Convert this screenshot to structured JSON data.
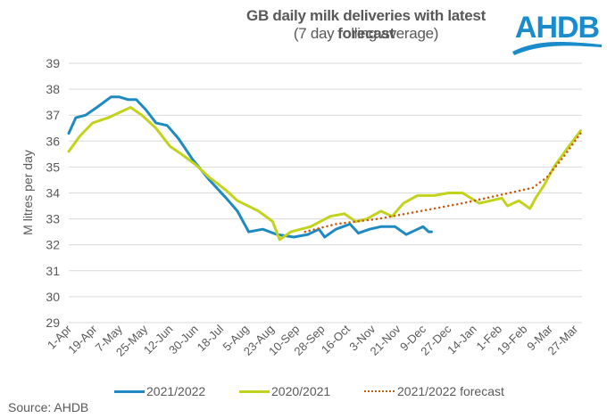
{
  "header": {
    "title": "GB daily milk deliveries with latest forecast",
    "subtitle": "(7 day rolling average)",
    "logo_text": "AHDB",
    "logo_color": "#1a8ccc"
  },
  "source": "Source: AHDB",
  "chart_data": {
    "type": "line",
    "title": "GB daily milk deliveries with latest forecast",
    "subtitle": "(7 day rolling average)",
    "xlabel": "",
    "ylabel": "M litres per day",
    "ylim": [
      29,
      39
    ],
    "yticks": [
      29,
      30,
      31,
      32,
      33,
      34,
      35,
      36,
      37,
      38,
      39
    ],
    "xlim_days": [
      0,
      365
    ],
    "x_unit": "days since 1-Apr",
    "xtick_days": [
      0,
      18,
      36,
      54,
      72,
      90,
      108,
      126,
      144,
      162,
      180,
      198,
      216,
      234,
      252,
      270,
      288,
      306,
      324,
      342,
      360
    ],
    "xtick_labels": [
      "1-Apr",
      "19-Apr",
      "7-May",
      "25-May",
      "12-Jun",
      "30-Jun",
      "18-Jul",
      "5-Aug",
      "23-Aug",
      "10-Sep",
      "28-Sep",
      "16-Oct",
      "3-Nov",
      "21-Nov",
      "9-Dec",
      "27-Dec",
      "14-Jan",
      "1-Feb",
      "19-Feb",
      "9-Mar",
      "27-Mar"
    ],
    "grid": "horizontal",
    "legend_position": "bottom",
    "series": [
      {
        "name": "2021/2022",
        "color": "#1f8ac2",
        "style": "solid",
        "points": [
          [
            0,
            36.3
          ],
          [
            5,
            36.9
          ],
          [
            12,
            37.0
          ],
          [
            20,
            37.3
          ],
          [
            30,
            37.7
          ],
          [
            36,
            37.7
          ],
          [
            42,
            37.6
          ],
          [
            48,
            37.6
          ],
          [
            55,
            37.2
          ],
          [
            62,
            36.7
          ],
          [
            70,
            36.6
          ],
          [
            78,
            36.1
          ],
          [
            88,
            35.3
          ],
          [
            100,
            34.5
          ],
          [
            112,
            33.8
          ],
          [
            120,
            33.3
          ],
          [
            128,
            32.5
          ],
          [
            138,
            32.6
          ],
          [
            148,
            32.4
          ],
          [
            160,
            32.3
          ],
          [
            170,
            32.4
          ],
          [
            178,
            32.6
          ],
          [
            182,
            32.3
          ],
          [
            190,
            32.6
          ],
          [
            200,
            32.8
          ],
          [
            206,
            32.45
          ],
          [
            214,
            32.6
          ],
          [
            222,
            32.7
          ],
          [
            232,
            32.7
          ],
          [
            240,
            32.4
          ],
          [
            248,
            32.6
          ],
          [
            252,
            32.7
          ],
          [
            256,
            32.5
          ],
          [
            258,
            32.5
          ]
        ]
      },
      {
        "name": "2020/2021",
        "color": "#c3d21c",
        "style": "solid",
        "points": [
          [
            0,
            35.6
          ],
          [
            8,
            36.2
          ],
          [
            17,
            36.7
          ],
          [
            28,
            36.9
          ],
          [
            40,
            37.2
          ],
          [
            44,
            37.3
          ],
          [
            52,
            37.0
          ],
          [
            62,
            36.5
          ],
          [
            72,
            35.8
          ],
          [
            80,
            35.5
          ],
          [
            90,
            35.1
          ],
          [
            100,
            34.6
          ],
          [
            112,
            34.1
          ],
          [
            120,
            33.7
          ],
          [
            135,
            33.3
          ],
          [
            145,
            32.9
          ],
          [
            150,
            32.2
          ],
          [
            158,
            32.5
          ],
          [
            172,
            32.7
          ],
          [
            186,
            33.1
          ],
          [
            196,
            33.2
          ],
          [
            204,
            32.9
          ],
          [
            212,
            33.0
          ],
          [
            222,
            33.3
          ],
          [
            230,
            33.1
          ],
          [
            238,
            33.6
          ],
          [
            248,
            33.9
          ],
          [
            260,
            33.9
          ],
          [
            270,
            34.0
          ],
          [
            280,
            34.0
          ],
          [
            292,
            33.6
          ],
          [
            300,
            33.7
          ],
          [
            308,
            33.8
          ],
          [
            312,
            33.5
          ],
          [
            320,
            33.7
          ],
          [
            328,
            33.4
          ],
          [
            332,
            33.8
          ],
          [
            338,
            34.3
          ],
          [
            345,
            35.0
          ],
          [
            353,
            35.6
          ],
          [
            364,
            36.4
          ]
        ]
      },
      {
        "name": "2021/2022 forecast",
        "color": "#c55a11",
        "style": "dotted",
        "points": [
          [
            168,
            32.5
          ],
          [
            190,
            32.8
          ],
          [
            220,
            33.0
          ],
          [
            250,
            33.3
          ],
          [
            280,
            33.6
          ],
          [
            305,
            33.9
          ],
          [
            330,
            34.2
          ],
          [
            340,
            34.6
          ],
          [
            352,
            35.4
          ],
          [
            364,
            36.3
          ]
        ]
      }
    ]
  },
  "legend": [
    {
      "label": "2021/2022",
      "color": "#1f8ac2",
      "style": "solid"
    },
    {
      "label": "2020/2021",
      "color": "#c3d21c",
      "style": "solid"
    },
    {
      "label": "2021/2022 forecast",
      "color": "#c55a11",
      "style": "dotted"
    }
  ]
}
